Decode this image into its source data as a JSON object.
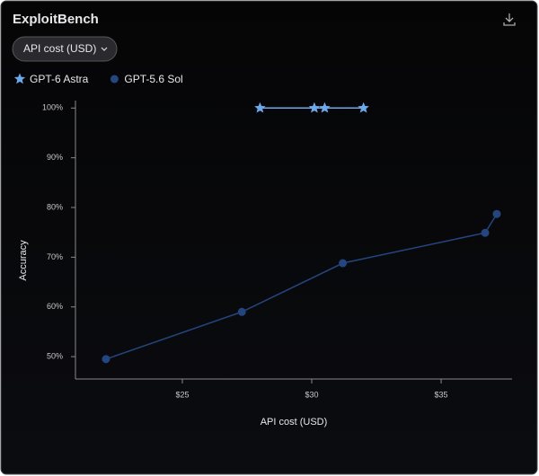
{
  "header": {
    "title": "ExploitBench"
  },
  "controls": {
    "metric": "API cost (USD)"
  },
  "chart_data": {
    "type": "line",
    "x_label": "API cost (USD)",
    "y_label": "Accuracy",
    "series": [
      {
        "name": "GPT-6 Astra",
        "color": "#6fa8e8",
        "marker": "star",
        "x": [
          28.0,
          30.1,
          30.5,
          32.0
        ],
        "values": [
          100,
          100,
          100,
          100
        ]
      },
      {
        "name": "GPT-5.6 Sol",
        "color": "#24457f",
        "marker": "circle",
        "x": [
          22.05,
          27.3,
          31.2,
          36.7,
          37.15
        ],
        "values": [
          49.5,
          59.0,
          68.8,
          74.9,
          78.7
        ]
      }
    ],
    "xlim": [
      20.87,
      37.74
    ],
    "xticks": [
      {
        "value": 25,
        "label": "$25"
      },
      {
        "value": 30,
        "label": "$30"
      },
      {
        "value": 35,
        "label": "$35"
      }
    ],
    "ylim": [
      45.5,
      101.5
    ],
    "yticks": [
      {
        "value": 50,
        "label": "50%"
      },
      {
        "value": 60,
        "label": "60%"
      },
      {
        "value": 70,
        "label": "70%"
      },
      {
        "value": 80,
        "label": "80%"
      },
      {
        "value": 90,
        "label": "90%"
      },
      {
        "value": 100,
        "label": "100%"
      }
    ],
    "grid": false
  }
}
